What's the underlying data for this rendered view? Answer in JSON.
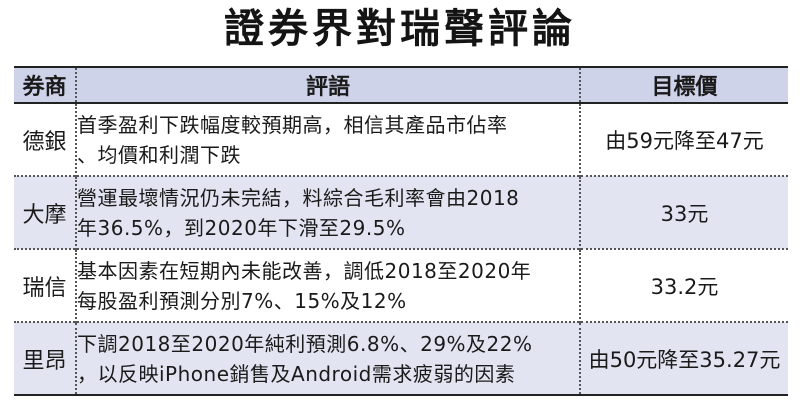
{
  "title": "證券界對瑞聲評論",
  "table": {
    "headers": {
      "broker": "券商",
      "comment": "評語",
      "target": "目標價"
    },
    "rows": [
      {
        "broker": "德銀",
        "comment_line1": "首季盈利下跌幅度較預期高，相信其產品市佔率",
        "comment_line2": "、均價和利潤下跌",
        "target": "由59元降至47元"
      },
      {
        "broker": "大摩",
        "comment_line1": "營運最壞情況仍未完結，料綜合毛利率會由2018",
        "comment_line2": "年36.5%，到2020年下滑至29.5%",
        "target": "33元"
      },
      {
        "broker": "瑞信",
        "comment_line1": "基本因素在短期內未能改善，調低2018至2020年",
        "comment_line2": "每股盈利預測分別7%、15%及12%",
        "target": "33.2元"
      },
      {
        "broker": "里昂",
        "comment_line1": "下調2018至2020年純利預測6.8%、29%及22%",
        "comment_line2": "，以反映iPhone銷售及Android需求疲弱的因素",
        "target": "由50元降至35.27元"
      }
    ]
  },
  "colors": {
    "header_bg": "#cfd3ea",
    "shaded_row_bg": "#e2e5f1",
    "rule": "#222222"
  }
}
